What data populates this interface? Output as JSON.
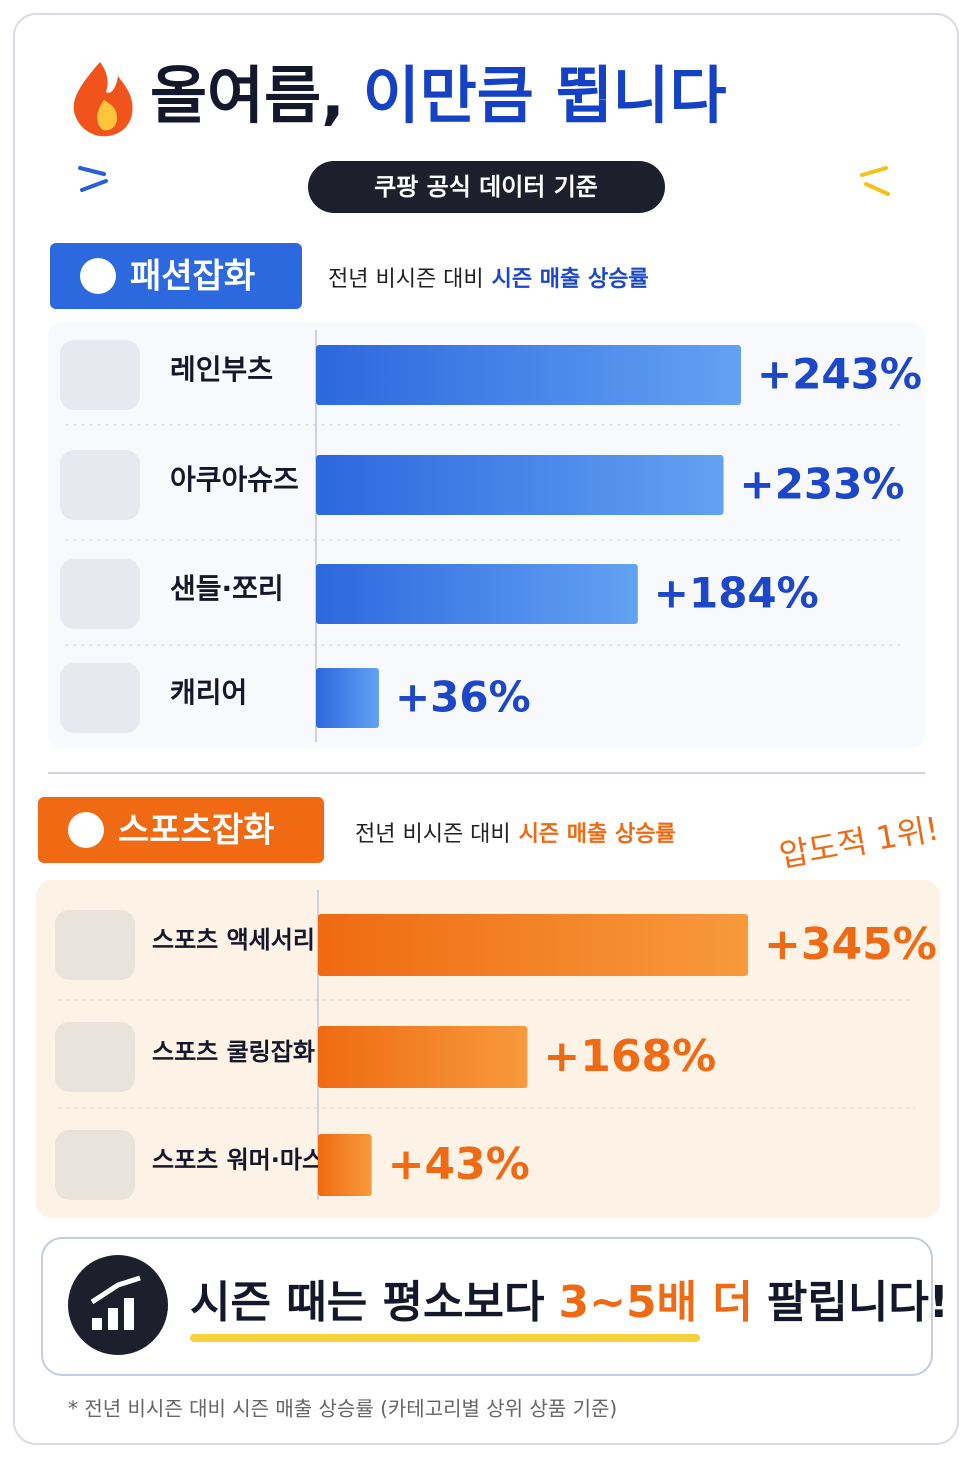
{
  "header": {
    "title_part1": "올여름,",
    "title_part2": "이만큼 뜁니다",
    "badge": "쿠팡 공식 데이터 기준"
  },
  "chart_data": [
    {
      "type": "bar",
      "tag": "패션잡화",
      "subtitle": "전년 비시즌 대비",
      "subtitle_highlight": "시즌 매출 상승률",
      "categories": [
        "레인부츠",
        "아쿠아슈즈",
        "샌들·쪼리",
        "캐리어"
      ],
      "values": [
        243,
        233,
        184,
        36
      ],
      "value_labels": [
        "+243%",
        "+233%",
        "+184%",
        "+36%"
      ],
      "colors": [
        "#2c68de",
        "#62a2f2"
      ],
      "label_color": "#1d47c9"
    },
    {
      "type": "bar",
      "tag": "스포츠잡화",
      "subtitle": "전년 비시즌 대비",
      "subtitle_highlight": "시즌 매출 상승률",
      "annotation": "압도적 1위!",
      "categories": [
        "스포츠 액세서리",
        "스포츠 쿨링잡화",
        "스포츠 워머·마스크"
      ],
      "values": [
        345,
        168,
        43
      ],
      "value_labels": [
        "+345%",
        "+168%",
        "+43%"
      ],
      "colors": [
        "#ef6a12",
        "#f79a3c"
      ],
      "label_color": "#ee6a14"
    }
  ],
  "footer": {
    "summary_part1": "시즌 때는 평소보다",
    "summary_highlight": "3~5배 더",
    "summary_part2": "팔립니다!",
    "footnote": "* 전년 비시즌 대비 시즌 매출 상승률 (카테고리별 상위 상품 기준)"
  }
}
